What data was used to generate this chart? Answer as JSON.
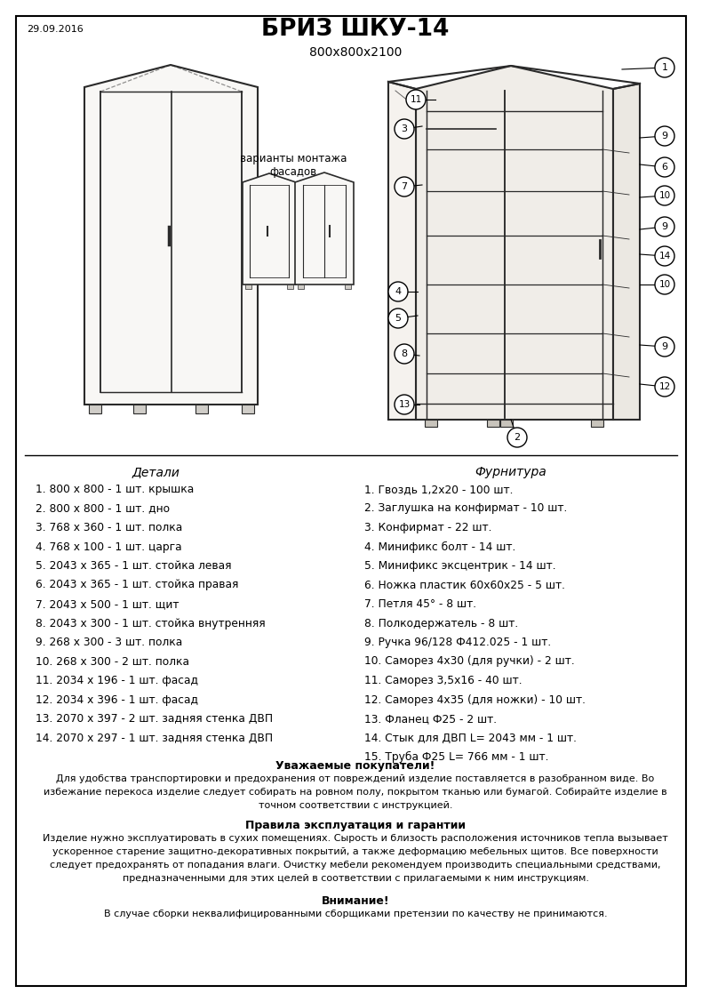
{
  "date": "29.09.2016",
  "title": "БРИЗ ШКУ-14",
  "subtitle": "800х800х2100",
  "section_details": "Детали",
  "section_hardware": "Фурнитура",
  "details": [
    "1. 800 х 800 - 1 шт. крышка",
    "2. 800 х 800 - 1 шт. дно",
    "3. 768 х 360 - 1 шт. полка",
    "4. 768 х 100 - 1 шт. царга",
    "5. 2043 х 365 - 1 шт. стойка левая",
    "6. 2043 х 365 - 1 шт. стойка правая",
    "7. 2043 х 500 - 1 шт. щит",
    "8. 2043 х 300 - 1 шт. стойка внутренняя",
    "9. 268 х 300 - 3 шт. полка",
    "10. 268 х 300 - 2 шт. полка",
    "11. 2034 х 196 - 1 шт. фасад",
    "12. 2034 х 396 - 1 шт. фасад",
    "13. 2070 х 397 - 2 шт. задняя стенка ДВП",
    "14. 2070 х 297 - 1 шт. задняя стенка ДВП"
  ],
  "hardware": [
    "1. Гвоздь 1,2х20 - 100 шт.",
    "2. Заглушка на конфирмат - 10 шт.",
    "3. Конфирмат - 22 шт.",
    "4. Минификс болт - 14 шт.",
    "5. Минификс эксцентрик - 14 шт.",
    "6. Ножка пластик 60х60х25 - 5 шт.",
    "7. Петля 45° - 8 шт.",
    "8. Полкодержатель - 8 шт.",
    "9. Ручка 96/128 Ф412.025 - 1 шт.",
    "10. Саморез 4х30 (для ручки) - 2 шт.",
    "11. Саморез 3,5х16 - 40 шт.",
    "12. Саморез 4х35 (для ножки) - 10 шт.",
    "13. Фланец Ф25 - 2 шт.",
    "14. Стык для ДВП L= 2043 мм - 1 шт.",
    "15. Труба Ф25 L= 766 мм - 1 шт."
  ],
  "notice_title1": "Уважаемые покупатели!",
  "notice_text1": "Для удобства транспортировки и предохранения от повреждений изделие поставляется в разобранном виде. Во\nизбежание перекоса изделие следует собирать на ровном полу, покрытом тканью или бумагой. Собирайте изделие в\nточном соответствии с инструкцией.",
  "notice_title2": "Правила эксплуатация и гарантии",
  "notice_text2": "Изделие нужно эксплуатировать в сухих помещениях. Сырость и близость расположения источников тепла вызывает\nускоренное старение защитно-декоративных покрытий, а также деформацию мебельных щитов. Все поверхности\nследует предохранять от попадания влаги. Очистку мебели рекомендуем производить специальными средствами,\nпредназначенными для этих целей в соответствии с прилагаемыми к ним инструкциям.",
  "notice_title3": "Внимание!",
  "notice_text3": "В случае сборки неквалифицированными сборщиками претензии по качеству не принимаются.",
  "variants_label": "варианты монтажа\nфасадов",
  "bg_color": "#ffffff",
  "border_color": "#000000",
  "text_color": "#000000"
}
